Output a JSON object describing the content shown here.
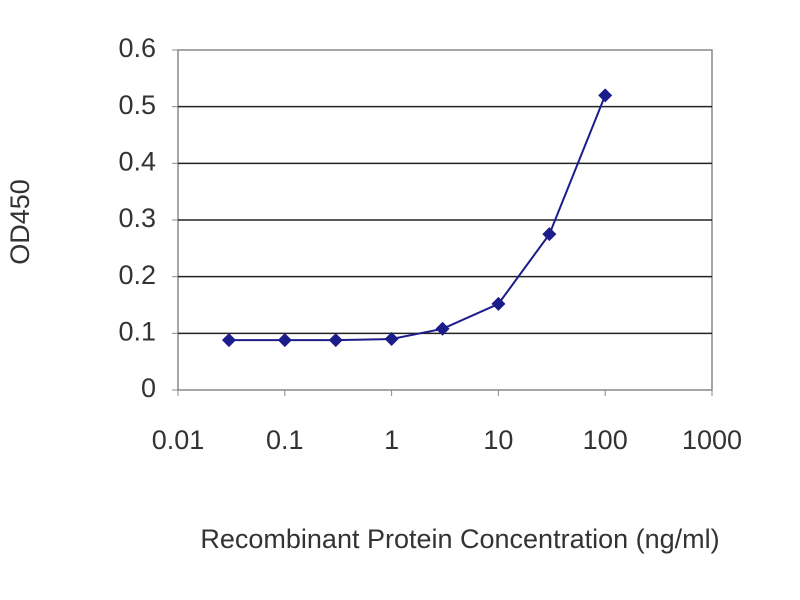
{
  "chart_data": {
    "type": "line",
    "x_label": "Recombinant Protein Concentration (ng/ml)",
    "y_label": "OD450",
    "x": [
      0.03,
      0.1,
      0.3,
      1,
      3,
      10,
      30,
      100
    ],
    "values": [
      0.088,
      0.088,
      0.088,
      0.09,
      0.108,
      0.152,
      0.275,
      0.52
    ],
    "color": "#1c1c8a",
    "xscale": "log",
    "xlim": [
      0.01,
      1000
    ],
    "xticks": [
      0.01,
      0.1,
      1,
      10,
      100,
      1000
    ],
    "ylim": [
      0,
      0.6
    ],
    "yticks": [
      0,
      0.1,
      0.2,
      0.3,
      0.4,
      0.5,
      0.6
    ],
    "grid": true
  }
}
